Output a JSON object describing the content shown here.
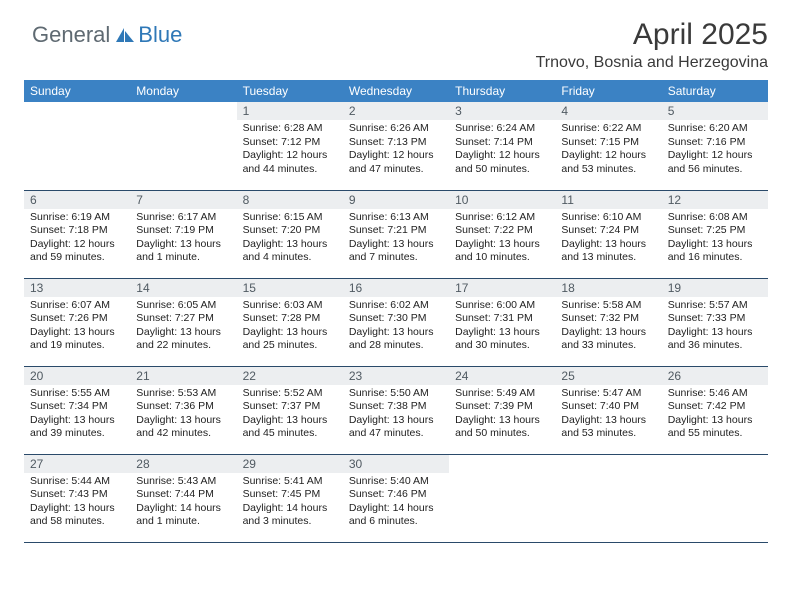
{
  "brand": {
    "general": "General",
    "blue": "Blue"
  },
  "title": "April 2025",
  "location": "Trnovo, Bosnia and Herzegovina",
  "colors": {
    "header_bg": "#3b82c4",
    "header_text": "#ffffff",
    "row_border": "#2a4a6a",
    "day_num_bg": "#eceef0",
    "brand_gray": "#5f6a72",
    "brand_blue": "#2f78b7"
  },
  "days_of_week": [
    "Sunday",
    "Monday",
    "Tuesday",
    "Wednesday",
    "Thursday",
    "Friday",
    "Saturday"
  ],
  "weeks": [
    [
      null,
      null,
      {
        "num": "1",
        "sunrise": "Sunrise: 6:28 AM",
        "sunset": "Sunset: 7:12 PM",
        "daylight": "Daylight: 12 hours and 44 minutes."
      },
      {
        "num": "2",
        "sunrise": "Sunrise: 6:26 AM",
        "sunset": "Sunset: 7:13 PM",
        "daylight": "Daylight: 12 hours and 47 minutes."
      },
      {
        "num": "3",
        "sunrise": "Sunrise: 6:24 AM",
        "sunset": "Sunset: 7:14 PM",
        "daylight": "Daylight: 12 hours and 50 minutes."
      },
      {
        "num": "4",
        "sunrise": "Sunrise: 6:22 AM",
        "sunset": "Sunset: 7:15 PM",
        "daylight": "Daylight: 12 hours and 53 minutes."
      },
      {
        "num": "5",
        "sunrise": "Sunrise: 6:20 AM",
        "sunset": "Sunset: 7:16 PM",
        "daylight": "Daylight: 12 hours and 56 minutes."
      }
    ],
    [
      {
        "num": "6",
        "sunrise": "Sunrise: 6:19 AM",
        "sunset": "Sunset: 7:18 PM",
        "daylight": "Daylight: 12 hours and 59 minutes."
      },
      {
        "num": "7",
        "sunrise": "Sunrise: 6:17 AM",
        "sunset": "Sunset: 7:19 PM",
        "daylight": "Daylight: 13 hours and 1 minute."
      },
      {
        "num": "8",
        "sunrise": "Sunrise: 6:15 AM",
        "sunset": "Sunset: 7:20 PM",
        "daylight": "Daylight: 13 hours and 4 minutes."
      },
      {
        "num": "9",
        "sunrise": "Sunrise: 6:13 AM",
        "sunset": "Sunset: 7:21 PM",
        "daylight": "Daylight: 13 hours and 7 minutes."
      },
      {
        "num": "10",
        "sunrise": "Sunrise: 6:12 AM",
        "sunset": "Sunset: 7:22 PM",
        "daylight": "Daylight: 13 hours and 10 minutes."
      },
      {
        "num": "11",
        "sunrise": "Sunrise: 6:10 AM",
        "sunset": "Sunset: 7:24 PM",
        "daylight": "Daylight: 13 hours and 13 minutes."
      },
      {
        "num": "12",
        "sunrise": "Sunrise: 6:08 AM",
        "sunset": "Sunset: 7:25 PM",
        "daylight": "Daylight: 13 hours and 16 minutes."
      }
    ],
    [
      {
        "num": "13",
        "sunrise": "Sunrise: 6:07 AM",
        "sunset": "Sunset: 7:26 PM",
        "daylight": "Daylight: 13 hours and 19 minutes."
      },
      {
        "num": "14",
        "sunrise": "Sunrise: 6:05 AM",
        "sunset": "Sunset: 7:27 PM",
        "daylight": "Daylight: 13 hours and 22 minutes."
      },
      {
        "num": "15",
        "sunrise": "Sunrise: 6:03 AM",
        "sunset": "Sunset: 7:28 PM",
        "daylight": "Daylight: 13 hours and 25 minutes."
      },
      {
        "num": "16",
        "sunrise": "Sunrise: 6:02 AM",
        "sunset": "Sunset: 7:30 PM",
        "daylight": "Daylight: 13 hours and 28 minutes."
      },
      {
        "num": "17",
        "sunrise": "Sunrise: 6:00 AM",
        "sunset": "Sunset: 7:31 PM",
        "daylight": "Daylight: 13 hours and 30 minutes."
      },
      {
        "num": "18",
        "sunrise": "Sunrise: 5:58 AM",
        "sunset": "Sunset: 7:32 PM",
        "daylight": "Daylight: 13 hours and 33 minutes."
      },
      {
        "num": "19",
        "sunrise": "Sunrise: 5:57 AM",
        "sunset": "Sunset: 7:33 PM",
        "daylight": "Daylight: 13 hours and 36 minutes."
      }
    ],
    [
      {
        "num": "20",
        "sunrise": "Sunrise: 5:55 AM",
        "sunset": "Sunset: 7:34 PM",
        "daylight": "Daylight: 13 hours and 39 minutes."
      },
      {
        "num": "21",
        "sunrise": "Sunrise: 5:53 AM",
        "sunset": "Sunset: 7:36 PM",
        "daylight": "Daylight: 13 hours and 42 minutes."
      },
      {
        "num": "22",
        "sunrise": "Sunrise: 5:52 AM",
        "sunset": "Sunset: 7:37 PM",
        "daylight": "Daylight: 13 hours and 45 minutes."
      },
      {
        "num": "23",
        "sunrise": "Sunrise: 5:50 AM",
        "sunset": "Sunset: 7:38 PM",
        "daylight": "Daylight: 13 hours and 47 minutes."
      },
      {
        "num": "24",
        "sunrise": "Sunrise: 5:49 AM",
        "sunset": "Sunset: 7:39 PM",
        "daylight": "Daylight: 13 hours and 50 minutes."
      },
      {
        "num": "25",
        "sunrise": "Sunrise: 5:47 AM",
        "sunset": "Sunset: 7:40 PM",
        "daylight": "Daylight: 13 hours and 53 minutes."
      },
      {
        "num": "26",
        "sunrise": "Sunrise: 5:46 AM",
        "sunset": "Sunset: 7:42 PM",
        "daylight": "Daylight: 13 hours and 55 minutes."
      }
    ],
    [
      {
        "num": "27",
        "sunrise": "Sunrise: 5:44 AM",
        "sunset": "Sunset: 7:43 PM",
        "daylight": "Daylight: 13 hours and 58 minutes."
      },
      {
        "num": "28",
        "sunrise": "Sunrise: 5:43 AM",
        "sunset": "Sunset: 7:44 PM",
        "daylight": "Daylight: 14 hours and 1 minute."
      },
      {
        "num": "29",
        "sunrise": "Sunrise: 5:41 AM",
        "sunset": "Sunset: 7:45 PM",
        "daylight": "Daylight: 14 hours and 3 minutes."
      },
      {
        "num": "30",
        "sunrise": "Sunrise: 5:40 AM",
        "sunset": "Sunset: 7:46 PM",
        "daylight": "Daylight: 14 hours and 6 minutes."
      },
      null,
      null,
      null
    ]
  ]
}
